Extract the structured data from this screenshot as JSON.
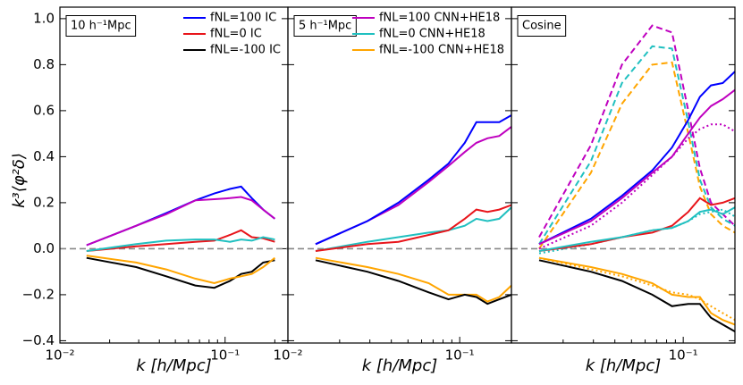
{
  "y_label": "k³⟨φ²δ⟩",
  "chart_data": [
    {
      "type": "line",
      "label": "10 h⁻¹Mpc",
      "x_label": "k [h/Mpc]",
      "log_x": true,
      "xlim": [
        0.01,
        0.24
      ],
      "ylim": [
        -0.41,
        1.05
      ],
      "xticks": [
        {
          "value": 0.01,
          "label": "10⁻²"
        },
        {
          "value": 0.1,
          "label": "10⁻¹"
        }
      ],
      "yticks": [
        {
          "value": -0.4,
          "label": "−0.4"
        },
        {
          "value": -0.2,
          "label": "−0.2"
        },
        {
          "value": 0,
          "label": "0.0"
        },
        {
          "value": 0.2,
          "label": "0.2"
        },
        {
          "value": 0.4,
          "label": "0.4"
        },
        {
          "value": 0.6,
          "label": "0.6"
        },
        {
          "value": 0.8,
          "label": "0.8"
        },
        {
          "value": 1,
          "label": "1.0"
        }
      ],
      "hline": 0,
      "legend": "upper right",
      "x": [
        0.0145,
        0.029,
        0.044,
        0.066,
        0.086,
        0.107,
        0.125,
        0.145,
        0.17,
        0.2
      ],
      "series": [
        {
          "name": "fNL=100 IC",
          "color": "#0000ff",
          "dash": "solid",
          "values": [
            0.015,
            0.1,
            0.155,
            0.21,
            0.24,
            0.26,
            0.27,
            0.22,
            0.17,
            0.13
          ]
        },
        {
          "name": "fNL=0 IC",
          "color": "#e8151b",
          "dash": "solid",
          "values": [
            -0.01,
            0.01,
            0.02,
            0.03,
            0.035,
            0.06,
            0.08,
            0.05,
            0.045,
            0.03
          ]
        },
        {
          "name": "fNL=-100 IC",
          "color": "#000000",
          "dash": "solid",
          "values": [
            -0.04,
            -0.08,
            -0.12,
            -0.16,
            -0.17,
            -0.14,
            -0.11,
            -0.1,
            -0.06,
            -0.05
          ]
        },
        {
          "color": "#bf00bf",
          "dash": "solid",
          "values": [
            0.015,
            0.1,
            0.15,
            0.21,
            0.215,
            0.22,
            0.225,
            0.21,
            0.17,
            0.13
          ]
        },
        {
          "color": "#20c0c0",
          "dash": "solid",
          "values": [
            -0.01,
            0.02,
            0.035,
            0.04,
            0.04,
            0.03,
            0.04,
            0.035,
            0.05,
            0.04
          ]
        },
        {
          "color": "#ffa500",
          "dash": "solid",
          "values": [
            -0.03,
            -0.06,
            -0.09,
            -0.13,
            -0.15,
            -0.13,
            -0.12,
            -0.11,
            -0.08,
            -0.04
          ]
        }
      ]
    },
    {
      "type": "line",
      "label": "5 h⁻¹Mpc",
      "x_label": "k [h/Mpc]",
      "log_x": true,
      "xlim": [
        0.01,
        0.2
      ],
      "ylim": [
        -0.41,
        1.05
      ],
      "xticks": [
        {
          "value": 0.01,
          "label": "10⁻²"
        },
        {
          "value": 0.1,
          "label": "10⁻¹"
        }
      ],
      "hline": 0,
      "legend": "upper right",
      "x": [
        0.0145,
        0.029,
        0.044,
        0.066,
        0.086,
        0.107,
        0.125,
        0.145,
        0.17,
        0.2
      ],
      "series": [
        {
          "name": "fNL=100 CNN+HE18",
          "color": "#bf00bf",
          "dash": "solid",
          "values": [
            0.02,
            0.12,
            0.19,
            0.29,
            0.36,
            0.42,
            0.46,
            0.48,
            0.49,
            0.53
          ]
        },
        {
          "name": "fNL=0 CNN+HE18",
          "color": "#20c0c0",
          "dash": "solid",
          "values": [
            -0.01,
            0.03,
            0.05,
            0.07,
            0.08,
            0.1,
            0.13,
            0.12,
            0.13,
            0.18
          ]
        },
        {
          "name": "fNL=-100 CNN+HE18",
          "color": "#ffa500",
          "dash": "solid",
          "values": [
            -0.04,
            -0.08,
            -0.11,
            -0.15,
            -0.2,
            -0.2,
            -0.2,
            -0.23,
            -0.21,
            -0.16
          ]
        },
        {
          "color": "#0000ff",
          "dash": "solid",
          "values": [
            0.02,
            0.12,
            0.2,
            0.3,
            0.37,
            0.46,
            0.55,
            0.55,
            0.55,
            0.58
          ]
        },
        {
          "color": "#e8151b",
          "dash": "solid",
          "values": [
            -0.01,
            0.02,
            0.03,
            0.06,
            0.08,
            0.13,
            0.17,
            0.16,
            0.17,
            0.19
          ]
        },
        {
          "color": "#000000",
          "dash": "solid",
          "values": [
            -0.05,
            -0.1,
            -0.14,
            -0.19,
            -0.22,
            -0.2,
            -0.21,
            -0.24,
            -0.22,
            -0.2
          ]
        }
      ]
    },
    {
      "type": "line",
      "label": "Cosine",
      "x_label": "k [h/Mpc]",
      "log_x": true,
      "xlim": [
        0.01,
        0.2
      ],
      "ylim": [
        -0.41,
        1.05
      ],
      "xticks": [
        {
          "value": 0.1,
          "label": "10⁻¹"
        }
      ],
      "hline": 0,
      "x": [
        0.0145,
        0.029,
        0.044,
        0.066,
        0.086,
        0.107,
        0.125,
        0.145,
        0.17,
        0.2
      ],
      "series": [
        {
          "color": "#bf00bf",
          "dash": "dashed",
          "values": [
            0.05,
            0.45,
            0.8,
            0.97,
            0.94,
            0.6,
            0.35,
            0.2,
            0.15,
            0.1
          ]
        },
        {
          "color": "#20c0c0",
          "dash": "dashed",
          "values": [
            0.02,
            0.38,
            0.72,
            0.88,
            0.87,
            0.55,
            0.3,
            0.18,
            0.13,
            0.1
          ]
        },
        {
          "color": "#ffa500",
          "dash": "dashed",
          "values": [
            0,
            0.33,
            0.63,
            0.8,
            0.81,
            0.5,
            0.27,
            0.15,
            0.1,
            0.07
          ]
        },
        {
          "color": "#bf00bf",
          "dash": "dotted",
          "values": [
            0,
            0.1,
            0.2,
            0.32,
            0.4,
            0.48,
            0.52,
            0.54,
            0.54,
            0.51
          ]
        },
        {
          "color": "#20c0c0",
          "dash": "dotted",
          "values": [
            -0.02,
            0.02,
            0.05,
            0.08,
            0.09,
            0.12,
            0.15,
            0.16,
            0.17,
            0.14
          ]
        },
        {
          "color": "#ffa500",
          "dash": "dotted",
          "values": [
            -0.04,
            -0.09,
            -0.12,
            -0.16,
            -0.19,
            -0.2,
            -0.22,
            -0.25,
            -0.28,
            -0.31
          ]
        },
        {
          "color": "#0000ff",
          "dash": "solid",
          "values": [
            0.02,
            0.13,
            0.23,
            0.34,
            0.44,
            0.56,
            0.66,
            0.71,
            0.72,
            0.77
          ]
        },
        {
          "color": "#bf00bf",
          "dash": "solid",
          "values": [
            0.02,
            0.12,
            0.22,
            0.33,
            0.4,
            0.5,
            0.57,
            0.62,
            0.65,
            0.69
          ]
        },
        {
          "color": "#e8151b",
          "dash": "solid",
          "values": [
            -0.01,
            0.02,
            0.05,
            0.07,
            0.1,
            0.16,
            0.22,
            0.19,
            0.2,
            0.22
          ]
        },
        {
          "color": "#20c0c0",
          "dash": "solid",
          "values": [
            -0.01,
            0.03,
            0.05,
            0.08,
            0.09,
            0.12,
            0.16,
            0.17,
            0.15,
            0.18
          ]
        },
        {
          "color": "#000000",
          "dash": "solid",
          "values": [
            -0.05,
            -0.1,
            -0.14,
            -0.2,
            -0.25,
            -0.24,
            -0.24,
            -0.3,
            -0.33,
            -0.36
          ]
        },
        {
          "color": "#ffa500",
          "dash": "solid",
          "values": [
            -0.04,
            -0.08,
            -0.11,
            -0.15,
            -0.2,
            -0.21,
            -0.21,
            -0.28,
            -0.31,
            -0.33
          ]
        }
      ]
    }
  ]
}
